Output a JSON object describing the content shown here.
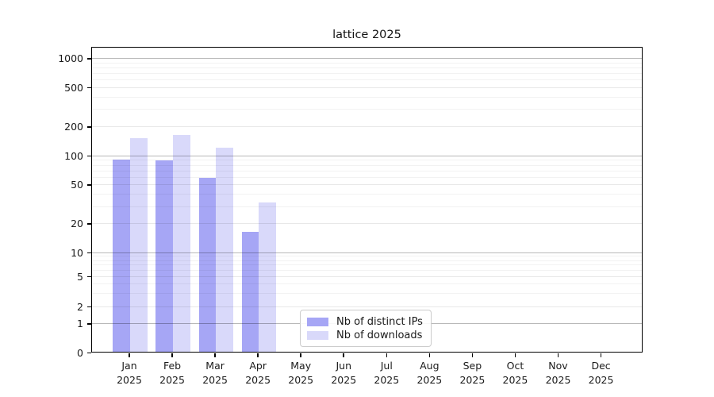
{
  "chart_data": {
    "type": "bar",
    "title": "lattice 2025",
    "categories": [
      "Jan",
      "Feb",
      "Mar",
      "Apr",
      "May",
      "Jun",
      "Jul",
      "Aug",
      "Sep",
      "Oct",
      "Nov",
      "Dec"
    ],
    "year_label": "2025",
    "series": [
      {
        "name": "Nb of distinct IPs",
        "color": "#a6a6f5",
        "values": [
          90,
          88,
          58,
          16,
          0,
          0,
          0,
          0,
          0,
          0,
          0,
          0
        ]
      },
      {
        "name": "Nb of downloads",
        "color": "#d9d9fa",
        "values": [
          148,
          160,
          119,
          32,
          0,
          0,
          0,
          0,
          0,
          0,
          0,
          0
        ]
      }
    ],
    "yticks": [
      0,
      1,
      2,
      5,
      10,
      20,
      50,
      100,
      200,
      500,
      1000
    ],
    "ylim": [
      0,
      1300
    ],
    "yscale": "symlog",
    "grid": true,
    "legend_position": "lower center",
    "axis_color": "#000000",
    "text_color": "#1a1a1a"
  }
}
